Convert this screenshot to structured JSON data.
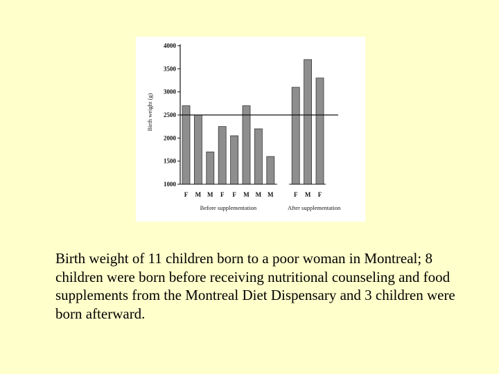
{
  "chart_data": {
    "type": "bar",
    "ylabel": "Birth weight (g)",
    "ylim": [
      1000,
      4000
    ],
    "yticks": [
      1000,
      1500,
      2000,
      2500,
      3000,
      3500,
      4000
    ],
    "reference_line": 2500,
    "categories": [
      "F",
      "M",
      "M",
      "F",
      "F",
      "M",
      "M",
      "M",
      "F",
      "M",
      "F"
    ],
    "values": [
      2700,
      2500,
      1700,
      2250,
      2050,
      2700,
      2200,
      1600,
      3100,
      3700,
      3300
    ],
    "groups": [
      {
        "label": "Before supplementation",
        "start": 0,
        "count": 8
      },
      {
        "label": "After supplementation",
        "start": 8,
        "count": 3
      }
    ],
    "bar_color": "#8e8e8e"
  },
  "caption": "Birth weight of 11 children born to a poor woman in Montreal; 8 children were born before receiving nutritional counseling and food supplements from the Montreal Diet Dispensary and 3 children were born afterward."
}
